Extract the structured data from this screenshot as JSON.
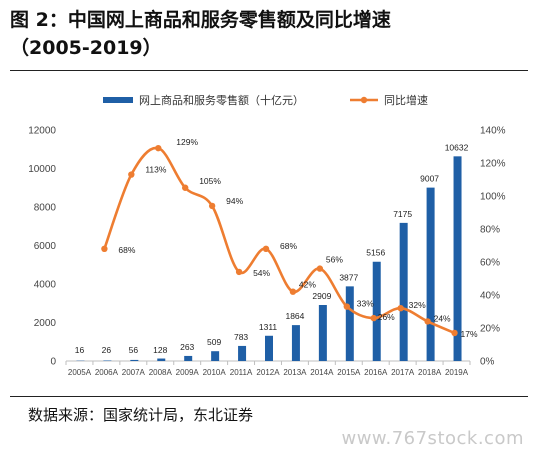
{
  "figure": {
    "title_line1": "图  2：中国网上商品和服务零售额及同比增速",
    "title_line2": "（2005-2019）",
    "source": "数据来源：国家统计局，东北证券",
    "watermark": "www.767stock.com"
  },
  "colors": {
    "bar": "#1f5fa6",
    "line": "#ee7d31",
    "axis": "#bfbfbf",
    "text": "#444444"
  },
  "chart_data": {
    "type": "bar",
    "categories": [
      "2005A",
      "2006A",
      "2007A",
      "2008A",
      "2009A",
      "2010A",
      "2011A",
      "2012A",
      "2013A",
      "2014A",
      "2015A",
      "2016A",
      "2017A",
      "2018A",
      "2019A"
    ],
    "series": [
      {
        "name": "网上商品和服务零售额（十亿元）",
        "type": "bar",
        "axis": "left",
        "values": [
          16,
          26,
          56,
          128,
          263,
          509,
          783,
          1311,
          1864,
          2909,
          3877,
          5156,
          7175,
          9007,
          10632
        ],
        "labels": [
          "16",
          "26",
          "56",
          "128",
          "263",
          "509",
          "783",
          "1311",
          "1864",
          "2909",
          "3877",
          "5156",
          "7175",
          "9007",
          "10632"
        ]
      },
      {
        "name": "同比增速",
        "type": "line",
        "axis": "right",
        "values": [
          null,
          68,
          113,
          129,
          105,
          94,
          54,
          68,
          42,
          56,
          33,
          26,
          32,
          24,
          17
        ],
        "labels": [
          "",
          "68%",
          "113%",
          "129%",
          "105%",
          "94%",
          "54%",
          "68%",
          "42%",
          "56%",
          "33%",
          "26%",
          "32%",
          "24%",
          "17%"
        ]
      }
    ],
    "y_left": {
      "ylim": [
        0,
        12000
      ],
      "ticks": [
        "0",
        "2000",
        "4000",
        "6000",
        "8000",
        "10000",
        "12000"
      ]
    },
    "y_right": {
      "ylim": [
        0,
        140
      ],
      "ticks": [
        "0%",
        "20%",
        "40%",
        "60%",
        "80%",
        "100%",
        "120%",
        "140%"
      ]
    },
    "legend": "top-center",
    "grid": false
  }
}
